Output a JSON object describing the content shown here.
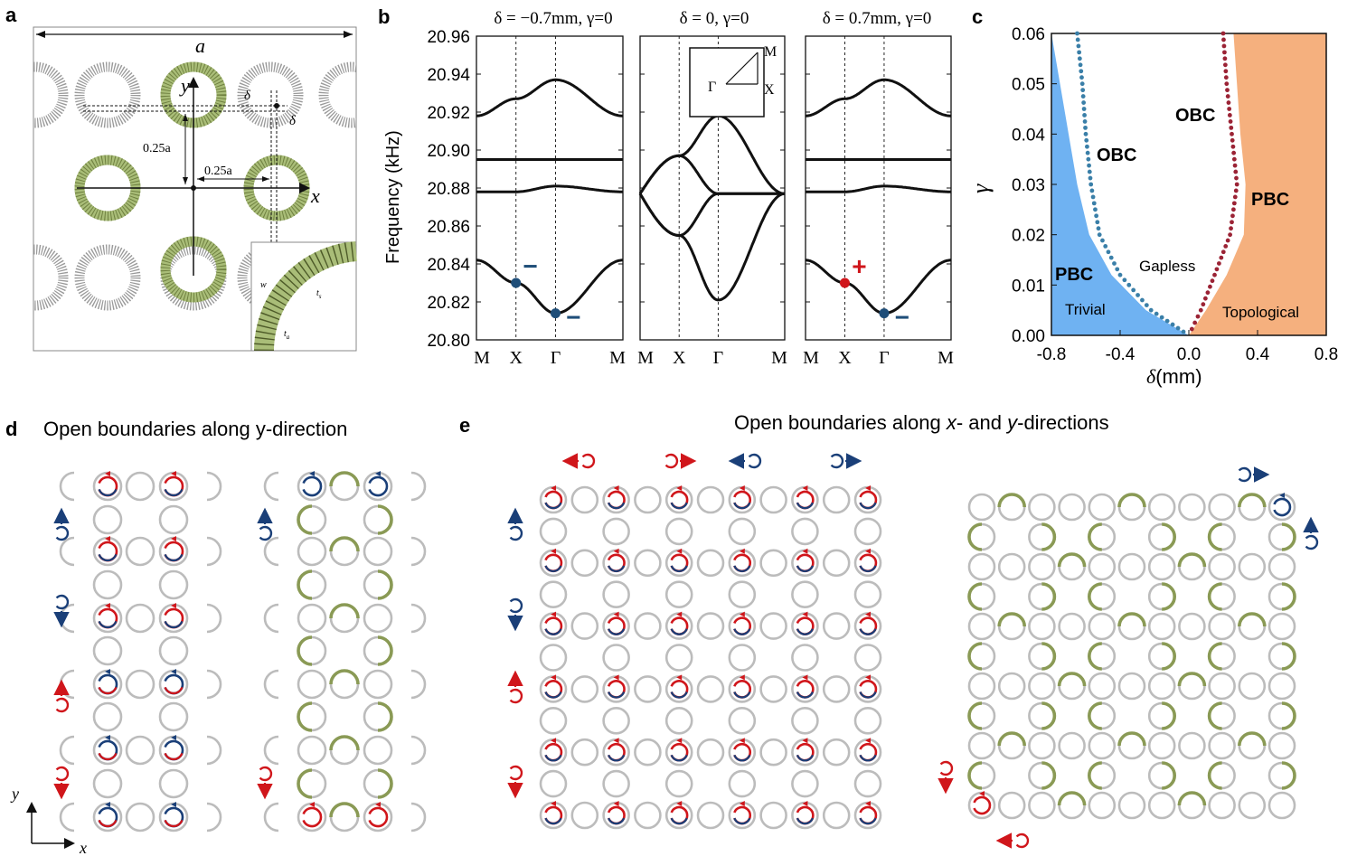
{
  "panel_labels": {
    "a": "a",
    "b": "b",
    "c": "c",
    "d": "d",
    "e": "e"
  },
  "panel_a": {
    "lattice_label": "a",
    "axis_x": "x",
    "axis_y": "y",
    "delta_label": "δ",
    "offset_y_label": "0.25a",
    "offset_x_label": "0.25a",
    "inset_labels": {
      "w": "w",
      "ts": "t",
      "ts_sub": "s",
      "ta": "t",
      "ta_sub": "a"
    }
  },
  "panel_b": {
    "ylabel": "Frequency (kHz)",
    "yticks": [
      "20.96",
      "20.94",
      "20.92",
      "20.90",
      "20.88",
      "20.86",
      "20.84",
      "20.82",
      "20.80"
    ],
    "subplot_titles": [
      "δ = −0.7mm, γ=0",
      "δ = 0, γ=0",
      "δ = 0.7mm, γ=0"
    ],
    "xticks": [
      "M",
      "X",
      "Γ",
      "M"
    ],
    "bz_inset": {
      "M": "M",
      "Gamma": "Γ",
      "X": "X"
    },
    "markers": {
      "minus": "−",
      "plus": "+"
    },
    "colors": {
      "blue": "#1f4e79",
      "red": "#d0161b"
    }
  },
  "chart_data": [
    {
      "type": "line",
      "title": "δ = −0.7mm, γ=0",
      "ylabel": "Frequency (kHz)",
      "ylim": [
        20.8,
        20.96
      ],
      "x": [
        0,
        1,
        2,
        3
      ],
      "xticks": [
        "M",
        "X",
        "Γ",
        "M"
      ],
      "series": [
        {
          "values": [
            20.842,
            20.83,
            20.814,
            20.842
          ]
        },
        {
          "values": [
            20.878,
            20.878,
            20.881,
            20.878
          ]
        },
        {
          "values": [
            20.895,
            20.895,
            20.895,
            20.895
          ]
        },
        {
          "values": [
            20.918,
            20.927,
            20.937,
            20.918
          ]
        }
      ],
      "markers": [
        {
          "point": "X",
          "value": 20.83,
          "sign": "−",
          "color": "#1f4e79"
        },
        {
          "point": "Γ",
          "value": 20.814,
          "sign": "−",
          "color": "#1f4e79"
        }
      ]
    },
    {
      "type": "line",
      "title": "δ = 0, γ=0",
      "ylim": [
        20.8,
        20.96
      ],
      "x": [
        0,
        1,
        2,
        3
      ],
      "xticks": [
        "M",
        "X",
        "Γ",
        "M"
      ],
      "series": [
        {
          "values": [
            20.877,
            20.855,
            20.821,
            20.877
          ]
        },
        {
          "values": [
            20.877,
            20.855,
            20.877,
            20.877
          ]
        },
        {
          "values": [
            20.877,
            20.897,
            20.877,
            20.877
          ]
        },
        {
          "values": [
            20.877,
            20.897,
            20.918,
            20.877
          ]
        }
      ]
    },
    {
      "type": "line",
      "title": "δ = 0.7mm, γ=0",
      "ylim": [
        20.8,
        20.96
      ],
      "x": [
        0,
        1,
        2,
        3
      ],
      "xticks": [
        "M",
        "X",
        "Γ",
        "M"
      ],
      "series": [
        {
          "values": [
            20.842,
            20.83,
            20.814,
            20.842
          ]
        },
        {
          "values": [
            20.878,
            20.878,
            20.881,
            20.878
          ]
        },
        {
          "values": [
            20.895,
            20.895,
            20.895,
            20.895
          ]
        },
        {
          "values": [
            20.918,
            20.927,
            20.937,
            20.918
          ]
        }
      ],
      "markers": [
        {
          "point": "X",
          "value": 20.83,
          "sign": "+",
          "color": "#d0161b"
        },
        {
          "point": "Γ",
          "value": 20.814,
          "sign": "−",
          "color": "#1f4e79"
        }
      ]
    },
    {
      "type": "area",
      "xlabel": "δ (mm)",
      "ylabel": "γ",
      "xlim": [
        -0.8,
        0.8
      ],
      "ylim": [
        0.0,
        0.06
      ],
      "xticks": [
        "-0.8",
        "-0.4",
        "0.0",
        "0.4",
        "0.8"
      ],
      "yticks": [
        "0.00",
        "0.01",
        "0.02",
        "0.03",
        "0.04",
        "0.05",
        "0.06"
      ],
      "regions": [
        {
          "name": "Trivial",
          "color": "#6fb2f2"
        },
        {
          "name": "Gapless",
          "color": "#ffffff"
        },
        {
          "name": "Topological",
          "color": "#f5b07e"
        }
      ],
      "labels": [
        "PBC",
        "OBC",
        "OBC",
        "PBC",
        "Trivial",
        "Gapless",
        "Topological"
      ],
      "boundaries": {
        "pbc_left": [
          [
            -0.8,
            0.06
          ],
          [
            -0.75,
            0.05
          ],
          [
            -0.7,
            0.04
          ],
          [
            -0.65,
            0.03
          ],
          [
            -0.58,
            0.02
          ],
          [
            -0.45,
            0.012
          ],
          [
            -0.25,
            0.005
          ],
          [
            0.0,
            0.0
          ]
        ],
        "obc_left": [
          [
            -0.65,
            0.06
          ],
          [
            -0.62,
            0.05
          ],
          [
            -0.6,
            0.04
          ],
          [
            -0.57,
            0.03
          ],
          [
            -0.52,
            0.02
          ],
          [
            -0.4,
            0.012
          ],
          [
            -0.22,
            0.005
          ],
          [
            0.0,
            0.0
          ]
        ],
        "obc_right": [
          [
            0.2,
            0.06
          ],
          [
            0.22,
            0.05
          ],
          [
            0.25,
            0.04
          ],
          [
            0.28,
            0.03
          ],
          [
            0.24,
            0.02
          ],
          [
            0.15,
            0.012
          ],
          [
            0.07,
            0.005
          ],
          [
            0.0,
            0.0
          ]
        ],
        "pbc_right": [
          [
            0.26,
            0.06
          ],
          [
            0.28,
            0.05
          ],
          [
            0.3,
            0.04
          ],
          [
            0.33,
            0.03
          ],
          [
            0.32,
            0.02
          ],
          [
            0.22,
            0.012
          ],
          [
            0.1,
            0.005
          ],
          [
            0.0,
            0.0
          ]
        ]
      },
      "series": [
        {
          "name": "OBC left",
          "color": "#3a7fa8"
        },
        {
          "name": "OBC right",
          "color": "#9b2335"
        }
      ]
    }
  ],
  "panel_c": {
    "xlabel_sym": "δ",
    "xlabel_unit": "(mm)",
    "ylabel": "γ",
    "xticks": [
      "-0.8",
      "-0.4",
      "0.0",
      "0.4",
      "0.8"
    ],
    "yticks": [
      "0.00",
      "0.01",
      "0.02",
      "0.03",
      "0.04",
      "0.05",
      "0.06"
    ],
    "labels": {
      "pbc_left": "PBC",
      "obc_left": "OBC",
      "obc_right": "OBC",
      "pbc_right": "PBC",
      "trivial": "Trivial",
      "gapless": "Gapless",
      "topological": "Topological"
    },
    "colors": {
      "trivial": "#6fb2f2",
      "topological": "#f5b07e",
      "obc_left": "#3a7fa8",
      "obc_right": "#9b2335"
    }
  },
  "panel_d": {
    "title": "Open boundaries along y-direction",
    "axis_x": "x",
    "axis_y": "y"
  },
  "panel_e": {
    "title_prefix": "Open boundaries along ",
    "title_x": "x",
    "title_mid": "- and ",
    "title_y": "y",
    "title_suffix": "-directions"
  },
  "colors": {
    "ring": "#bcbcbc",
    "green": "#8a9a55",
    "red": "#d0161b",
    "navy": "#1a3f78"
  }
}
